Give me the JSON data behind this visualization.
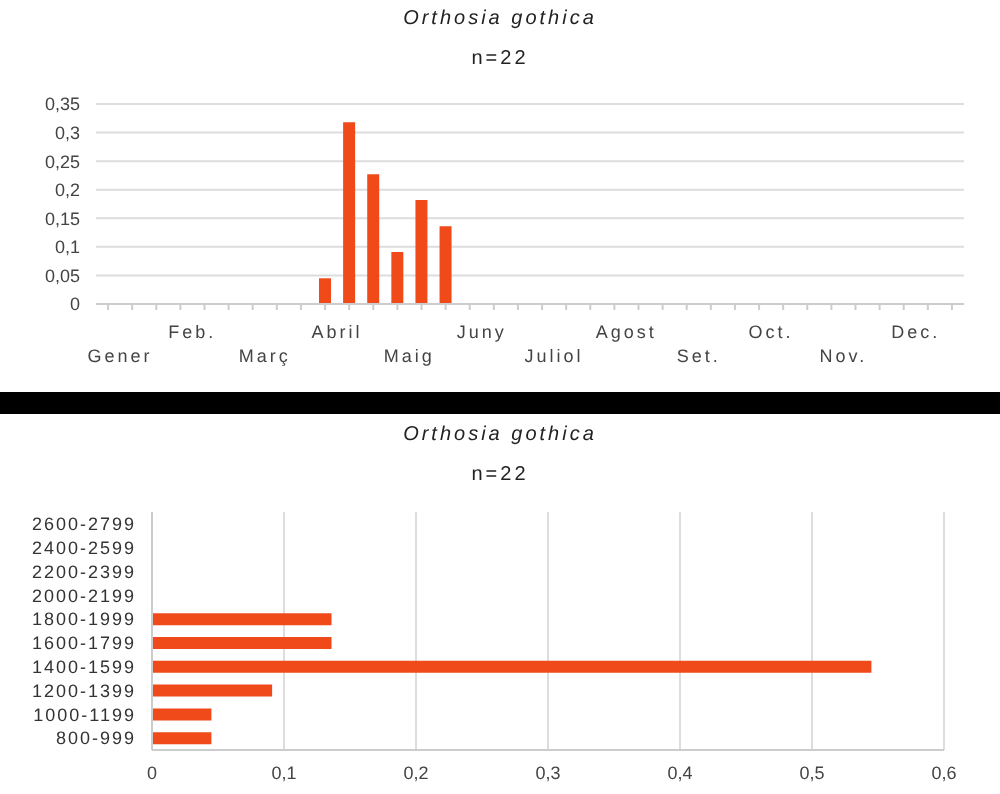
{
  "chart_data": [
    {
      "type": "bar",
      "title": "Orthosia gothica",
      "subtitle": "n=22",
      "categories": [
        "Gener",
        null,
        null,
        "Feb.",
        null,
        null,
        "Març",
        null,
        null,
        "Abril",
        null,
        null,
        "Maig",
        null,
        null,
        "Juny",
        null,
        null,
        "Juliol",
        null,
        null,
        "Agost",
        null,
        null,
        "Set.",
        null,
        null,
        "Oct.",
        null,
        null,
        "Nov.",
        null,
        null,
        "Dec.",
        null,
        null
      ],
      "values": [
        0,
        0,
        0,
        0,
        0,
        0,
        0,
        0,
        0,
        0.045,
        0.318,
        0.227,
        0.091,
        0.182,
        0.136,
        0,
        0,
        0,
        0,
        0,
        0,
        0,
        0,
        0,
        0,
        0,
        0,
        0,
        0,
        0,
        0,
        0,
        0,
        0,
        0,
        0
      ],
      "color": "#f04a1a",
      "ylim": [
        0,
        0.35
      ],
      "yticks": [
        0,
        {
          "value": 0.05,
          "label": "0,05"
        },
        {
          "value": 0.1,
          "label": "0,1"
        },
        {
          "value": 0.15,
          "label": "0,15"
        },
        {
          "value": 0.2,
          "label": "0,2"
        },
        {
          "value": 0.25,
          "label": "0,25"
        },
        {
          "value": 0.3,
          "label": "0,3"
        },
        {
          "value": 0.35,
          "label": "0,35"
        }
      ],
      "grid": "y"
    },
    {
      "type": "bar",
      "title": "Orthosia gothica",
      "subtitle": "n=22",
      "orientation": "horizontal",
      "categories": [
        "2600-2799",
        "2400-2599",
        "2200-2399",
        "2000-2199",
        "1800-1999",
        "1600-1799",
        "1400-1599",
        "1200-1399",
        "1000-1199",
        "800-999"
      ],
      "values": [
        0,
        0,
        0,
        0,
        0.136,
        0.136,
        0.545,
        0.091,
        0.045,
        0.045
      ],
      "color": "#f04a1a",
      "xlim": [
        0,
        0.6
      ],
      "xticks": [
        0,
        {
          "value": 0.1,
          "label": "0,1"
        },
        {
          "value": 0.2,
          "label": "0,2"
        },
        {
          "value": 0.3,
          "label": "0,3"
        },
        {
          "value": 0.4,
          "label": "0,4"
        },
        {
          "value": 0.5,
          "label": "0,5"
        },
        {
          "value": 0.6,
          "label": "0,6"
        }
      ],
      "grid": "x"
    }
  ]
}
